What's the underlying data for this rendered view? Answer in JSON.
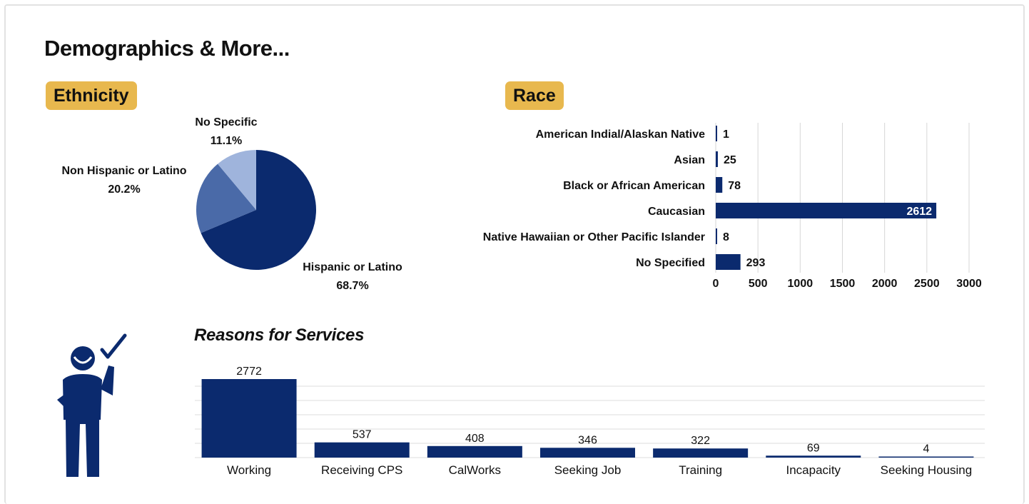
{
  "page": {
    "title": "Demographics & More...",
    "ethnicity_tag": "Ethnicity",
    "race_tag": "Race",
    "reasons_title": "Reasons for Services"
  },
  "colors": {
    "dark_navy": "#0b2a6e",
    "medium_blue": "#4a6aa8",
    "light_blue": "#9fb4dc",
    "tag_gold": "#e8b84e",
    "grid": "#d6d6d6"
  },
  "icons": {
    "person": "person-checkmark-icon"
  },
  "chart_data": [
    {
      "type": "pie",
      "labels": [
        "Hispanic or Latino",
        "Non Hispanic or Latino",
        "No Specific"
      ],
      "values": [
        68.7,
        20.2,
        11.1
      ],
      "value_labels": [
        "68.7%",
        "20.2%",
        "11.1%"
      ],
      "colors": [
        "#0b2a6e",
        "#4a6aa8",
        "#9fb4dc"
      ]
    },
    {
      "type": "bar",
      "orientation": "horizontal",
      "categories": [
        "American Indial/Alaskan Native",
        "Asian",
        "Black or African American",
        "Caucasian",
        "Native Hawaiian or Other Pacific Islander",
        "No Specified"
      ],
      "values": [
        1,
        25,
        78,
        2612,
        8,
        293
      ],
      "xlim": [
        0,
        3000
      ],
      "ticks": [
        0,
        500,
        1000,
        1500,
        2000,
        2500,
        3000
      ],
      "grid": true
    },
    {
      "type": "bar",
      "orientation": "vertical",
      "categories": [
        "Working",
        "Receiving CPS",
        "CalWorks",
        "Seeking Job",
        "Training",
        "Incapacity",
        "Seeking Housing"
      ],
      "values": [
        2772,
        537,
        408,
        346,
        322,
        69,
        4
      ],
      "ylim": [
        0,
        2772
      ],
      "grid": true
    }
  ]
}
